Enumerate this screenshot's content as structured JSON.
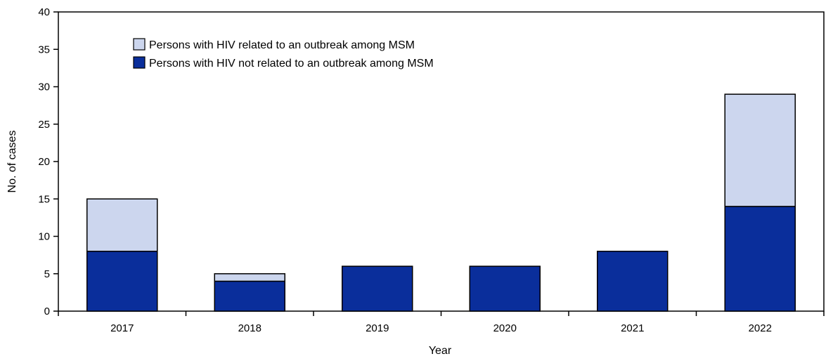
{
  "chart_data": {
    "type": "bar",
    "stacked": true,
    "categories": [
      "2017",
      "2018",
      "2019",
      "2020",
      "2021",
      "2022"
    ],
    "series": [
      {
        "name": "Persons with HIV not related to an outbreak among MSM",
        "values": [
          8,
          4,
          6,
          6,
          8,
          14
        ],
        "color": "#0a2e9b"
      },
      {
        "name": "Persons with HIV related to an outbreak among MSM",
        "values": [
          7,
          1,
          0,
          0,
          0,
          15
        ],
        "color": "#ccd6ee"
      }
    ],
    "legend_order": [
      1,
      0
    ],
    "legend_position": "top-left",
    "xlabel": "Year",
    "ylabel": "No. of cases",
    "ylim": [
      0,
      40
    ],
    "yticks": [
      "0",
      "5",
      "10",
      "15",
      "20",
      "25",
      "30",
      "35",
      "40"
    ],
    "grid": false
  }
}
